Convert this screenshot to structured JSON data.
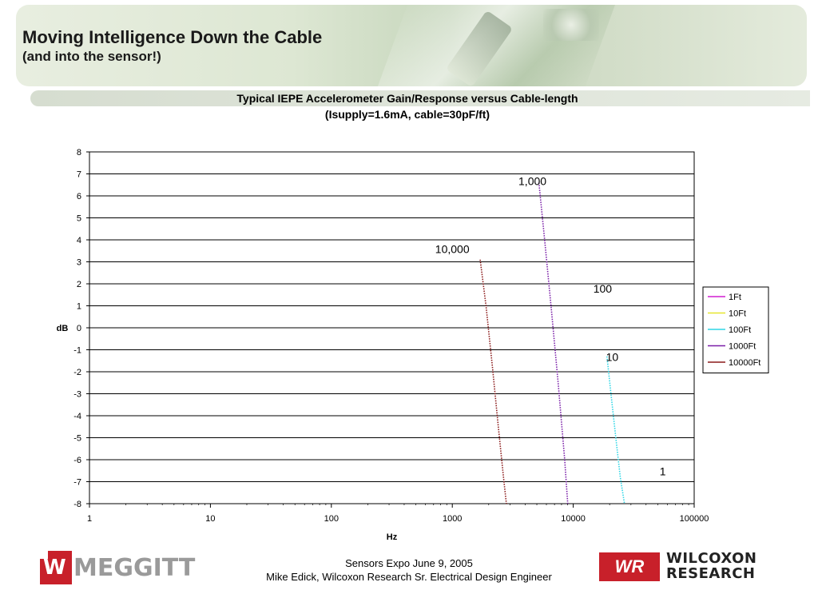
{
  "slide": {
    "title": "Moving Intelligence Down the Cable",
    "subtitle": "(and into the sensor!)"
  },
  "chart_data": {
    "type": "line",
    "title": "Typical IEPE Accelerometer Gain/Response versus Cable-length",
    "subtitle": "(Isupply=1.6mA, cable=30pF/ft)",
    "xlabel": "Hz",
    "ylabel": "dB",
    "x_scale": "log",
    "xlim": [
      1,
      100000
    ],
    "ylim": [
      -8,
      8
    ],
    "x_ticks": [
      "1",
      "10",
      "100",
      "1000",
      "10000",
      "100000"
    ],
    "y_ticks": [
      "8",
      "7",
      "6",
      "5",
      "4",
      "3",
      "2",
      "1",
      "0",
      "-1",
      "-2",
      "-3",
      "-4",
      "-5",
      "-6",
      "-7",
      "-8"
    ],
    "grid": "horizontal",
    "legend_position": "right",
    "series": [
      {
        "name": "1Ft",
        "color": "#d11ed1",
        "x": [],
        "y": []
      },
      {
        "name": "10Ft",
        "color": "#e6e62e",
        "x": [],
        "y": []
      },
      {
        "name": "100Ft",
        "color": "#2ed6e6",
        "x": [
          19000,
          20500,
          22500,
          24500,
          26500
        ],
        "y": [
          -1.3,
          -3.0,
          -5.0,
          -6.8,
          -8.0
        ]
      },
      {
        "name": "1000Ft",
        "color": "#7a1fa8",
        "x": [
          5200,
          5800,
          6600,
          7500,
          8500,
          9000
        ],
        "y": [
          6.6,
          4.0,
          0.8,
          -2.5,
          -6.0,
          -8.0
        ]
      },
      {
        "name": "10000Ft",
        "color": "#8b1a1a",
        "x": [
          1700,
          1900,
          2150,
          2400,
          2650,
          2800
        ],
        "y": [
          3.1,
          1.0,
          -1.8,
          -4.5,
          -6.8,
          -8.0
        ]
      }
    ],
    "annotations": [
      {
        "text": "1,000",
        "x": 4600,
        "y": 6.5
      },
      {
        "text": "10,000",
        "x": 1000,
        "y": 3.4
      },
      {
        "text": "100",
        "x": 17500,
        "y": 1.6
      },
      {
        "text": "10",
        "x": 21000,
        "y": -1.5
      },
      {
        "text": "1",
        "x": 55000,
        "y": -6.7
      }
    ]
  },
  "footer": {
    "line1": "Sensors Expo   June 9, 2005",
    "line2": "Mike Edick, Wilcoxon Research Sr. Electrical Design Engineer",
    "left_logo": "MEGGITT",
    "right_logo_mark": "WR",
    "right_logo_line1": "WILCOXON",
    "right_logo_line2": "RESEARCH"
  }
}
